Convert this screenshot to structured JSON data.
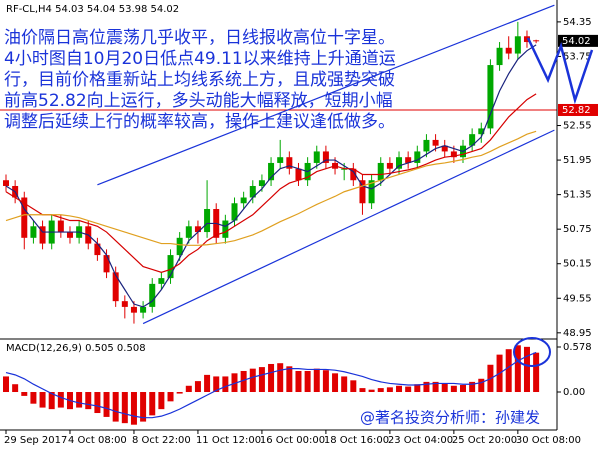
{
  "chart_data": {
    "type": "candlestick",
    "header": "RF-CL,H4  54.03 54.04 53.98 54.02",
    "annotation": [
      "油价隔日高位震荡几乎收平，日线报收高位十字星。",
      "4小时图自10月20日低点49.11以来维持上升通道运",
      "行，目前价格重新站上均线系统上方，且成强势突破",
      "前高52.82向上运行，多头动能大幅释放，短期小幅",
      "调整后延续上行的概率较高，操作上建议逢低做多。"
    ],
    "watermark": "@著名投资分析师：孙建发",
    "categories": [
      "29 Sep 2017",
      null,
      null,
      null,
      null,
      null,
      null,
      "4 Oct 08:00",
      null,
      null,
      null,
      null,
      null,
      null,
      "8 Oct 22:00",
      null,
      null,
      null,
      null,
      null,
      null,
      "11 Oct 12:00",
      null,
      null,
      null,
      null,
      null,
      null,
      "16 Oct 00:00",
      null,
      null,
      null,
      null,
      null,
      null,
      "18 Oct 16:00",
      null,
      null,
      null,
      null,
      null,
      null,
      "23 Oct 04:00",
      null,
      null,
      null,
      null,
      null,
      null,
      "25 Oct 20:00",
      null,
      null,
      null,
      null,
      null,
      null,
      "30 Oct 08:00",
      null,
      null
    ],
    "open": [
      51.6,
      51.5,
      51.3,
      50.6,
      50.8,
      50.5,
      50.9,
      50.7,
      50.6,
      50.8,
      50.5,
      50.3,
      50.0,
      49.5,
      49.4,
      49.3,
      49.4,
      49.8,
      49.9,
      50.3,
      50.6,
      50.8,
      50.7,
      51.1,
      50.6,
      50.9,
      51.2,
      51.3,
      51.5,
      51.6,
      51.9,
      52.0,
      51.8,
      51.6,
      51.9,
      52.1,
      51.9,
      51.8,
      51.8,
      51.6,
      51.2,
      51.6,
      51.9,
      51.8,
      52.0,
      51.9,
      52.1,
      52.3,
      52.2,
      52.1,
      52.0,
      52.2,
      52.4,
      52.5,
      53.6,
      53.9,
      53.8,
      54.1,
      54.03
    ],
    "high": [
      51.7,
      51.6,
      51.4,
      50.9,
      50.9,
      51.0,
      51.0,
      50.8,
      50.9,
      50.9,
      50.6,
      50.4,
      50.1,
      49.6,
      49.5,
      49.5,
      49.9,
      50.0,
      50.4,
      50.7,
      50.9,
      50.9,
      51.6,
      51.2,
      51.0,
      51.3,
      51.4,
      51.6,
      51.7,
      52.0,
      52.3,
      52.1,
      51.9,
      52.0,
      52.2,
      52.2,
      52.0,
      51.9,
      51.9,
      51.7,
      51.7,
      52.0,
      52.0,
      52.1,
      52.1,
      52.2,
      52.4,
      52.4,
      52.3,
      52.2,
      52.3,
      52.5,
      52.6,
      53.7,
      54.0,
      54.1,
      54.35,
      54.2,
      54.04
    ],
    "low": [
      51.4,
      51.2,
      50.4,
      50.5,
      50.4,
      50.4,
      50.6,
      50.5,
      50.5,
      50.4,
      50.2,
      49.9,
      49.4,
      49.2,
      49.11,
      49.2,
      49.3,
      49.7,
      49.8,
      50.2,
      50.5,
      50.5,
      50.6,
      50.5,
      50.5,
      50.8,
      51.1,
      51.2,
      51.4,
      51.5,
      51.8,
      51.7,
      51.5,
      51.5,
      51.8,
      51.8,
      51.7,
      51.6,
      51.5,
      51.0,
      51.1,
      51.5,
      51.7,
      51.7,
      51.8,
      51.8,
      52.0,
      52.1,
      52.0,
      51.9,
      51.9,
      52.1,
      52.25,
      52.4,
      53.5,
      53.7,
      53.7,
      53.9,
      53.98
    ],
    "close": [
      51.5,
      51.3,
      50.6,
      50.8,
      50.5,
      50.9,
      50.7,
      50.6,
      50.8,
      50.5,
      50.3,
      50.0,
      49.5,
      49.4,
      49.3,
      49.4,
      49.8,
      49.9,
      50.3,
      50.6,
      50.8,
      50.7,
      51.1,
      50.6,
      50.9,
      51.2,
      51.3,
      51.5,
      51.6,
      51.9,
      52.0,
      51.8,
      51.6,
      51.9,
      52.1,
      51.9,
      51.8,
      51.8,
      51.6,
      51.2,
      51.6,
      51.9,
      51.8,
      52.0,
      51.9,
      52.1,
      52.3,
      52.2,
      52.1,
      52.0,
      52.2,
      52.4,
      52.5,
      53.6,
      53.9,
      53.8,
      54.1,
      54.0,
      54.02
    ],
    "up_color": "#00a800",
    "down_color": "#e00000",
    "series": [
      {
        "color": "#1a237e",
        "values": [
          51.5,
          51.4,
          51.1,
          50.9,
          50.7,
          50.7,
          50.7,
          50.7,
          50.7,
          50.65,
          50.5,
          50.3,
          49.95,
          49.7,
          49.45,
          49.4,
          49.5,
          49.7,
          49.95,
          50.25,
          50.55,
          50.7,
          50.85,
          50.85,
          50.8,
          50.9,
          51.1,
          51.3,
          51.45,
          51.65,
          51.8,
          51.85,
          51.8,
          51.75,
          51.85,
          51.95,
          51.95,
          51.85,
          51.75,
          51.5,
          51.45,
          51.55,
          51.7,
          51.85,
          51.9,
          51.95,
          52.05,
          52.15,
          52.2,
          52.15,
          52.1,
          52.2,
          52.35,
          52.75,
          53.15,
          53.45,
          53.7,
          53.85,
          53.95
        ]
      },
      {
        "color": "#d60000",
        "values": [
          51.4,
          51.3,
          51.2,
          51.1,
          51.0,
          51.0,
          50.95,
          50.9,
          50.9,
          50.85,
          50.8,
          50.7,
          50.55,
          50.4,
          50.25,
          50.1,
          50.05,
          50.0,
          50.05,
          50.15,
          50.3,
          50.4,
          50.55,
          50.65,
          50.7,
          50.8,
          50.9,
          51.0,
          51.15,
          51.3,
          51.45,
          51.55,
          51.6,
          51.65,
          51.75,
          51.8,
          51.85,
          51.8,
          51.8,
          51.7,
          51.7,
          51.7,
          51.72,
          51.75,
          51.78,
          51.82,
          51.88,
          51.95,
          52.0,
          52.02,
          52.05,
          52.1,
          52.15,
          52.3,
          52.5,
          52.7,
          52.85,
          53.0,
          53.1
        ]
      },
      {
        "color": "#e0a020",
        "values": [
          50.9,
          50.95,
          51.0,
          51.0,
          51.0,
          51.0,
          51.0,
          50.98,
          50.95,
          50.9,
          50.85,
          50.8,
          50.75,
          50.7,
          50.65,
          50.6,
          50.55,
          50.5,
          50.5,
          50.48,
          50.47,
          50.47,
          50.48,
          50.5,
          50.52,
          50.55,
          50.6,
          50.65,
          50.72,
          50.8,
          50.88,
          50.95,
          51.02,
          51.1,
          51.18,
          51.25,
          51.32,
          51.4,
          51.45,
          51.5,
          51.55,
          51.6,
          51.65,
          51.7,
          51.75,
          51.8,
          51.85,
          51.88,
          51.9,
          51.93,
          51.96,
          52.0,
          52.03,
          52.1,
          52.18,
          52.25,
          52.32,
          52.4,
          52.45
        ]
      }
    ],
    "trendlines": [
      {
        "color": "#1a33d9",
        "x": [
          10,
          60
        ],
        "y": [
          51.52,
          54.64
        ]
      },
      {
        "color": "#1a33d9",
        "x": [
          15,
          60
        ],
        "y": [
          49.11,
          52.47
        ]
      }
    ],
    "price_lines": [
      {
        "value": 54.02,
        "color": "#000000"
      },
      {
        "value": 52.82,
        "color": "#e00000"
      }
    ],
    "ylim": [
      48.86,
      54.73
    ],
    "yticks": [
      54.35,
      53.75,
      52.55,
      51.95,
      51.35,
      50.75,
      50.15,
      49.55,
      48.95
    ],
    "macd": {
      "label": "MACD(12,26,9) 0.505 0.508",
      "color": "#e00000",
      "signal_color": "#1a33d9",
      "values": [
        0.2,
        0.1,
        -0.05,
        -0.15,
        -0.2,
        -0.22,
        -0.2,
        -0.22,
        -0.2,
        -0.22,
        -0.27,
        -0.32,
        -0.38,
        -0.4,
        -0.42,
        -0.38,
        -0.3,
        -0.22,
        -0.12,
        -0.02,
        0.08,
        0.14,
        0.22,
        0.2,
        0.2,
        0.24,
        0.27,
        0.3,
        0.32,
        0.36,
        0.37,
        0.33,
        0.27,
        0.27,
        0.3,
        0.28,
        0.24,
        0.2,
        0.15,
        0.05,
        0.03,
        0.05,
        0.06,
        0.08,
        0.07,
        0.1,
        0.13,
        0.13,
        0.11,
        0.08,
        0.09,
        0.13,
        0.17,
        0.35,
        0.48,
        0.55,
        0.6,
        0.58,
        0.505
      ],
      "signal": [
        0.25,
        0.22,
        0.17,
        0.1,
        0.04,
        -0.02,
        -0.07,
        -0.11,
        -0.14,
        -0.16,
        -0.18,
        -0.21,
        -0.25,
        -0.28,
        -0.31,
        -0.33,
        -0.33,
        -0.31,
        -0.27,
        -0.22,
        -0.16,
        -0.1,
        -0.04,
        0.02,
        0.07,
        0.11,
        0.15,
        0.19,
        0.22,
        0.25,
        0.28,
        0.3,
        0.3,
        0.29,
        0.29,
        0.29,
        0.28,
        0.26,
        0.23,
        0.2,
        0.16,
        0.13,
        0.11,
        0.1,
        0.09,
        0.09,
        0.1,
        0.11,
        0.11,
        0.11,
        0.1,
        0.1,
        0.12,
        0.17,
        0.24,
        0.32,
        0.4,
        0.46,
        0.508
      ],
      "ylim": [
        -0.488,
        0.668
      ],
      "yticks": [
        0.578,
        {
          "value": 0,
          "label": "0.00"
        }
      ]
    }
  }
}
